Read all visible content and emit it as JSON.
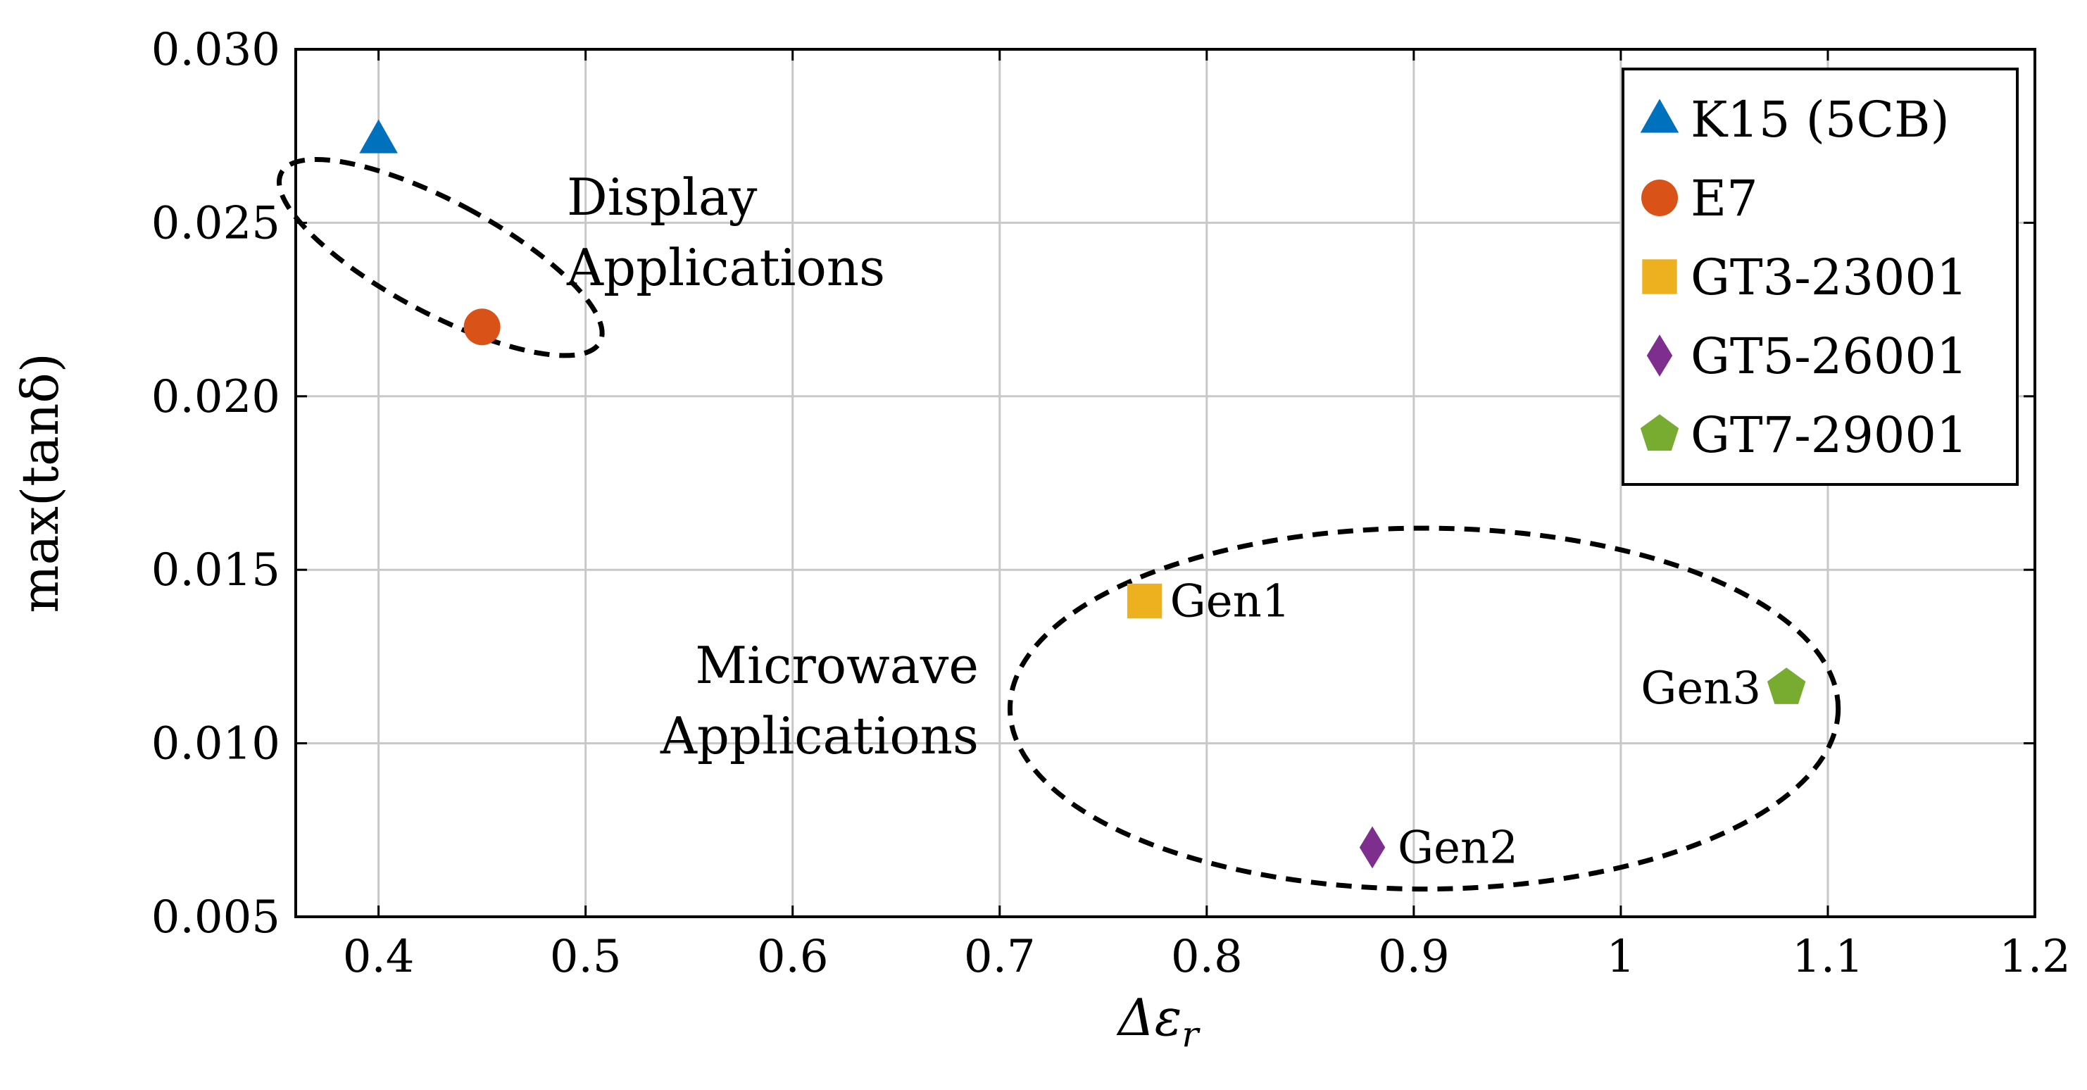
{
  "chart_data": {
    "type": "scatter",
    "xlabel": "Δε",
    "xlabel_sub": "r",
    "ylabel": "max(tanδ)",
    "xlim": [
      0.36,
      1.2
    ],
    "ylim": [
      0.005,
      0.03
    ],
    "grid": true,
    "x_ticks": [
      0.4,
      0.5,
      0.6,
      0.7,
      0.8,
      0.9,
      1,
      1.1,
      1.2
    ],
    "x_tick_labels": [
      "0.4",
      "0.5",
      "0.6",
      "0.7",
      "0.8",
      "0.9",
      "1",
      "1.1",
      "1.2"
    ],
    "y_ticks": [
      0.005,
      0.01,
      0.015,
      0.02,
      0.025,
      0.03
    ],
    "y_tick_labels": [
      "0.005",
      "0.010",
      "0.015",
      "0.020",
      "0.025",
      "0.030"
    ],
    "legend_position": "top-right",
    "series": [
      {
        "name": "K15 (5CB)",
        "marker": "triangle",
        "color": "#0072BD",
        "x": 0.4,
        "y": 0.0274,
        "label": ""
      },
      {
        "name": "E7",
        "marker": "circle",
        "color": "#D95319",
        "x": 0.45,
        "y": 0.022,
        "label": ""
      },
      {
        "name": "GT3-23001",
        "marker": "square",
        "color": "#EDB120",
        "x": 0.77,
        "y": 0.0141,
        "label": "Gen1"
      },
      {
        "name": "GT5-26001",
        "marker": "diamond",
        "color": "#7E2F8E",
        "x": 0.88,
        "y": 0.007,
        "label": "Gen2"
      },
      {
        "name": "GT7-29001",
        "marker": "pentagon",
        "color": "#77AC30",
        "x": 1.08,
        "y": 0.0116,
        "label": "Gen3"
      }
    ],
    "annotations": [
      {
        "group": "display",
        "lines": [
          "Display",
          "Applications"
        ],
        "ellipse": {
          "cx": 0.43,
          "cy": 0.024,
          "rx": 0.027,
          "ry": 0.0052,
          "tilt": -62
        }
      },
      {
        "group": "microwave",
        "lines": [
          "Microwave",
          "Applications"
        ],
        "ellipse": {
          "cx": 0.905,
          "cy": 0.011,
          "rx": 0.2,
          "ry": 0.0052,
          "tilt": 0
        }
      }
    ]
  }
}
